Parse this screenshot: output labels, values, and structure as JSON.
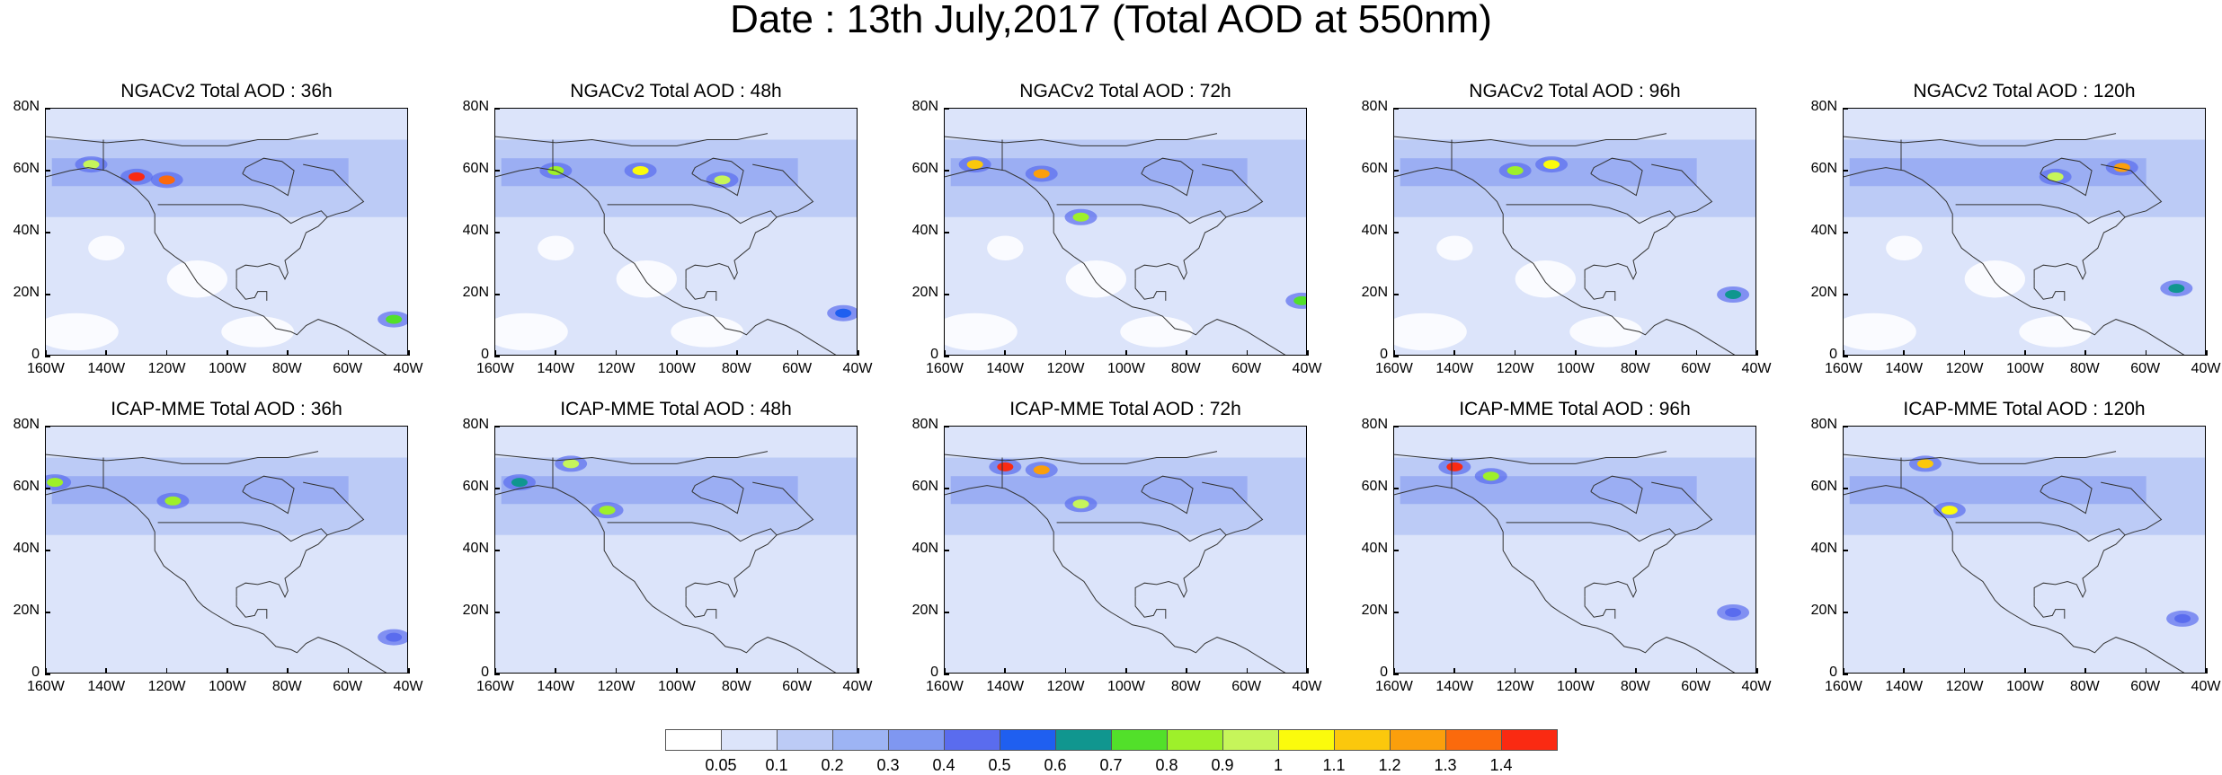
{
  "title": "Date : 13th July,2017 (Total AOD at 550nm)",
  "axes": {
    "x_ticks": [
      "160W",
      "140W",
      "120W",
      "100W",
      "80W",
      "60W",
      "40W"
    ],
    "y_ticks": [
      "80N",
      "60N",
      "40N",
      "20N",
      "0"
    ]
  },
  "panels": [
    {
      "title": "NGACv2 Total AOD : 36h"
    },
    {
      "title": "NGACv2 Total AOD : 48h"
    },
    {
      "title": "NGACv2 Total AOD : 72h"
    },
    {
      "title": "NGACv2 Total AOD : 96h"
    },
    {
      "title": "NGACv2 Total AOD : 120h"
    },
    {
      "title": "ICAP-MME Total AOD : 36h"
    },
    {
      "title": "ICAP-MME Total AOD : 48h"
    },
    {
      "title": "ICAP-MME Total AOD : 72h"
    },
    {
      "title": "ICAP-MME Total AOD : 96h"
    },
    {
      "title": "ICAP-MME Total AOD : 120h"
    }
  ],
  "colorbar": {
    "labels": [
      "0.05",
      "0.1",
      "0.2",
      "0.3",
      "0.4",
      "0.5",
      "0.6",
      "0.7",
      "0.8",
      "0.9",
      "1",
      "1.1",
      "1.2",
      "1.3",
      "1.4"
    ],
    "colors": [
      "#ffffff",
      "#dce4fa",
      "#bccbf6",
      "#9db4f4",
      "#7f97f1",
      "#5a6cee",
      "#1f5ff0",
      "#10968f",
      "#52e02a",
      "#9ef02a",
      "#c6f55a",
      "#fbfb0c",
      "#fbc80c",
      "#fb9f0c",
      "#fb6a0c",
      "#fa2a12"
    ]
  },
  "chart_data": {
    "type": "heatmap",
    "title": "Date : 13th July,2017 (Total AOD at 550nm)",
    "xlim": [
      -160,
      -40
    ],
    "ylim": [
      0,
      80
    ],
    "x_ticks": [
      "160W",
      "140W",
      "120W",
      "100W",
      "80W",
      "60W",
      "40W"
    ],
    "y_ticks": [
      "80N",
      "60N",
      "40N",
      "20N",
      "0"
    ],
    "color_levels": [
      0.05,
      0.1,
      0.2,
      0.3,
      0.4,
      0.5,
      0.6,
      0.7,
      0.8,
      0.9,
      1,
      1.1,
      1.2,
      1.3,
      1.4
    ],
    "panels": [
      {
        "title": "NGACv2 Total AOD : 36h",
        "model": "NGACv2",
        "lead": "36h",
        "features": [
          {
            "lon": -130,
            "lat": 58,
            "aod": 1.4
          },
          {
            "lon": -120,
            "lat": 57,
            "aod": 1.3
          },
          {
            "lon": -145,
            "lat": 62,
            "aod": 0.9
          },
          {
            "lon": -45,
            "lat": 12,
            "aod": 0.7
          }
        ]
      },
      {
        "title": "NGACv2 Total AOD : 48h",
        "model": "NGACv2",
        "lead": "48h",
        "features": [
          {
            "lon": -140,
            "lat": 60,
            "aod": 0.8
          },
          {
            "lon": -112,
            "lat": 60,
            "aod": 1.0
          },
          {
            "lon": -85,
            "lat": 57,
            "aod": 0.9
          },
          {
            "lon": -45,
            "lat": 14,
            "aod": 0.5
          }
        ]
      },
      {
        "title": "NGACv2 Total AOD : 72h",
        "model": "NGACv2",
        "lead": "72h",
        "features": [
          {
            "lon": -150,
            "lat": 62,
            "aod": 1.1
          },
          {
            "lon": -128,
            "lat": 59,
            "aod": 1.2
          },
          {
            "lon": -115,
            "lat": 45,
            "aod": 0.8
          },
          {
            "lon": -42,
            "lat": 18,
            "aod": 0.7
          }
        ]
      },
      {
        "title": "NGACv2 Total AOD : 96h",
        "model": "NGACv2",
        "lead": "96h",
        "features": [
          {
            "lon": -108,
            "lat": 62,
            "aod": 1.0
          },
          {
            "lon": -120,
            "lat": 60,
            "aod": 0.8
          },
          {
            "lon": -48,
            "lat": 20,
            "aod": 0.6
          }
        ]
      },
      {
        "title": "NGACv2 Total AOD : 120h",
        "model": "NGACv2",
        "lead": "120h",
        "features": [
          {
            "lon": -68,
            "lat": 61,
            "aod": 1.2
          },
          {
            "lon": -90,
            "lat": 58,
            "aod": 0.9
          },
          {
            "lon": -50,
            "lat": 22,
            "aod": 0.6
          }
        ]
      },
      {
        "title": "ICAP-MME Total AOD : 36h",
        "model": "ICAP-MME",
        "lead": "36h",
        "features": [
          {
            "lon": -157,
            "lat": 62,
            "aod": 0.8
          },
          {
            "lon": -118,
            "lat": 56,
            "aod": 0.8
          },
          {
            "lon": -45,
            "lat": 12,
            "aod": 0.4
          }
        ]
      },
      {
        "title": "ICAP-MME Total AOD : 48h",
        "model": "ICAP-MME",
        "lead": "48h",
        "features": [
          {
            "lon": -152,
            "lat": 62,
            "aod": 0.6
          },
          {
            "lon": -135,
            "lat": 68,
            "aod": 0.9
          },
          {
            "lon": -123,
            "lat": 53,
            "aod": 0.8
          }
        ]
      },
      {
        "title": "ICAP-MME Total AOD : 72h",
        "model": "ICAP-MME",
        "lead": "72h",
        "features": [
          {
            "lon": -140,
            "lat": 67,
            "aod": 1.4
          },
          {
            "lon": -128,
            "lat": 66,
            "aod": 1.2
          },
          {
            "lon": -115,
            "lat": 55,
            "aod": 0.9
          }
        ]
      },
      {
        "title": "ICAP-MME Total AOD : 96h",
        "model": "ICAP-MME",
        "lead": "96h",
        "features": [
          {
            "lon": -140,
            "lat": 67,
            "aod": 1.4
          },
          {
            "lon": -128,
            "lat": 64,
            "aod": 0.8
          },
          {
            "lon": -48,
            "lat": 20,
            "aod": 0.4
          }
        ]
      },
      {
        "title": "ICAP-MME Total AOD : 120h",
        "model": "ICAP-MME",
        "lead": "120h",
        "features": [
          {
            "lon": -133,
            "lat": 68,
            "aod": 1.1
          },
          {
            "lon": -125,
            "lat": 53,
            "aod": 1.0
          },
          {
            "lon": -48,
            "lat": 18,
            "aod": 0.4
          }
        ]
      }
    ]
  }
}
